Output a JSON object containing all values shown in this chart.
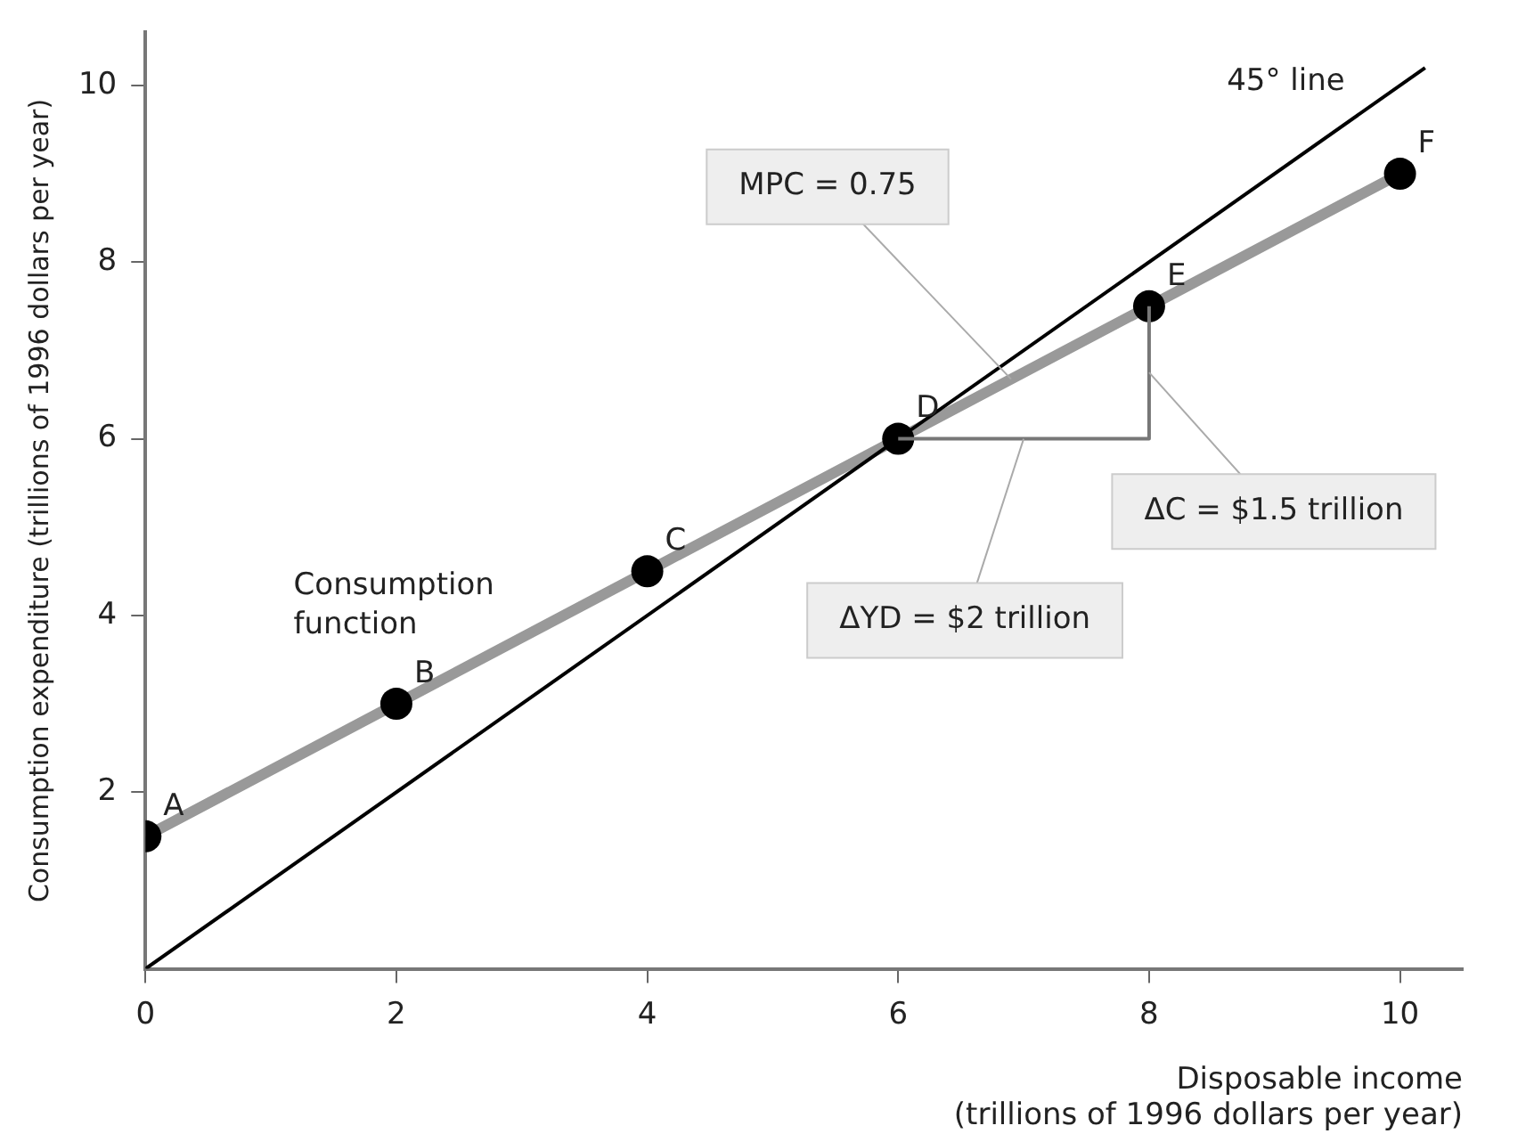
{
  "chart_data": {
    "type": "line",
    "xlabel": "Disposable income\n(trillions of 1996 dollars per year)",
    "ylabel": "Consumption expenditure (trillions of 1996 dollars per year)",
    "xlim": [
      0,
      10.5
    ],
    "xticks": [
      0,
      2,
      4,
      6,
      8,
      10
    ],
    "ylim": [
      0,
      10.6
    ],
    "yticks": [
      2,
      4,
      6,
      8,
      10
    ],
    "grid": false,
    "legend": false,
    "series": [
      {
        "color": "#999999",
        "marker": "circle",
        "x": [
          0,
          2,
          4,
          6,
          8,
          10
        ],
        "values": [
          1.5,
          3,
          4.5,
          6,
          7.5,
          9
        ],
        "value_labels": [
          "A",
          "B",
          "C",
          "D",
          "E",
          "F"
        ]
      },
      {
        "color": "#000000",
        "marker": "none",
        "x": [
          0,
          10.2
        ],
        "values": [
          0,
          10.2
        ]
      },
      {
        "color": "#777777",
        "marker": "none",
        "x": [
          6,
          8,
          8
        ],
        "values": [
          6,
          6,
          7.5
        ]
      }
    ],
    "annotations": [
      {
        "text": "Consumption function",
        "x": 2.8,
        "y": 3.6
      },
      {
        "text": "45° line",
        "x": 9.8,
        "y": 9.8
      },
      {
        "text": "MPC = 0.75",
        "x": 6.9,
        "y": 6.675
      },
      {
        "text": "ΔC = $1.5 trillion",
        "x": 8,
        "y": 6.75
      },
      {
        "text": "ΔYD = $2 trillion",
        "x": 7,
        "y": 6
      }
    ]
  }
}
